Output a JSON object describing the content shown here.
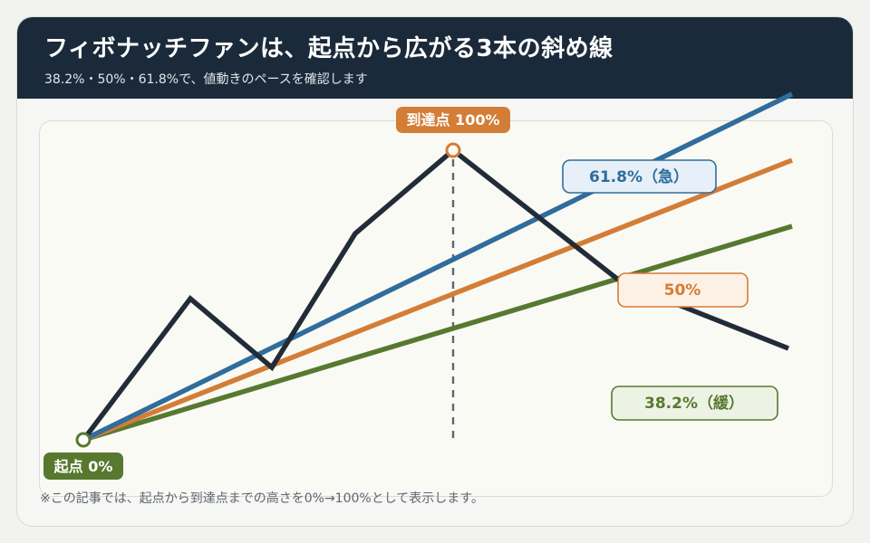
{
  "header": {
    "title": "フィボナッチファンは、起点から広がる3本の斜め線",
    "subtitle": "38.2%・50%・61.8%で、値動きのペースを確認します"
  },
  "diagram": {
    "origin_label": "起点 0%",
    "peak_label": "到達点 100%",
    "fan_lines": [
      {
        "key": "fib618",
        "label": "61.8%（急）",
        "color": "#2f6d9c",
        "fill": "#e7f0f8"
      },
      {
        "key": "fib50",
        "label": "50%",
        "color": "#d37d37",
        "fill": "#fdf0e4"
      },
      {
        "key": "fib382",
        "label": "38.2%（緩）",
        "color": "#57792f",
        "fill": "#edf3e4"
      }
    ],
    "price_line_color": "#222c38",
    "origin_color": "#57792f",
    "peak_color": "#d37d37"
  },
  "footnote": "※この記事では、起点から到達点までの高さを0%→100%として表示します。"
}
